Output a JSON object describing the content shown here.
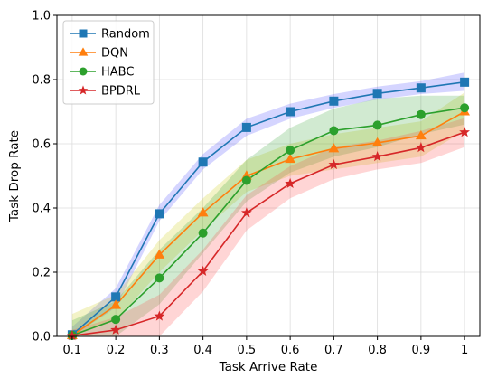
{
  "chart_data": {
    "type": "line",
    "title": "",
    "xlabel": "Task Arrive Rate",
    "ylabel": "Task Drop Rate",
    "xlim": [
      0.065,
      1.035
    ],
    "ylim": [
      0.0,
      1.0
    ],
    "x": [
      0.1,
      0.2,
      0.3,
      0.4,
      0.5,
      0.6,
      0.7,
      0.8,
      0.9,
      1.0
    ],
    "x_tick_labels": [
      "0.1",
      "0.2",
      "0.3",
      "0.4",
      "0.5",
      "0.6",
      "0.7",
      "0.8",
      "0.9",
      "1"
    ],
    "y_ticks": [
      0.0,
      0.2,
      0.4,
      0.6,
      0.8,
      1.0
    ],
    "y_tick_labels": [
      "0.0",
      "0.2",
      "0.4",
      "0.6",
      "0.8",
      "1.0"
    ],
    "grid": true,
    "legend_position": "top-left",
    "series": [
      {
        "name": "Random",
        "color": "#1f77b4",
        "band_color": "#4040ff",
        "marker": "square",
        "values": [
          0.005,
          0.123,
          0.382,
          0.543,
          0.651,
          0.7,
          0.733,
          0.757,
          0.774,
          0.792
        ],
        "lower": [
          0.0,
          0.09,
          0.36,
          0.52,
          0.625,
          0.678,
          0.712,
          0.738,
          0.755,
          0.765
        ],
        "upper": [
          0.03,
          0.15,
          0.41,
          0.568,
          0.678,
          0.725,
          0.755,
          0.778,
          0.795,
          0.822
        ]
      },
      {
        "name": "DQN",
        "color": "#ff7f0e",
        "band_color": "#c8c800",
        "marker": "triangle",
        "values": [
          0.003,
          0.097,
          0.254,
          0.385,
          0.5,
          0.552,
          0.585,
          0.603,
          0.625,
          0.7
        ],
        "lower": [
          0.0,
          0.05,
          0.2,
          0.33,
          0.45,
          0.5,
          0.52,
          0.54,
          0.56,
          0.64
        ],
        "upper": [
          0.07,
          0.13,
          0.3,
          0.43,
          0.55,
          0.6,
          0.63,
          0.65,
          0.67,
          0.76
        ]
      },
      {
        "name": "HABC",
        "color": "#2ca02c",
        "band_color": "#2ca02c",
        "marker": "circle",
        "values": [
          0.003,
          0.053,
          0.182,
          0.322,
          0.486,
          0.58,
          0.641,
          0.658,
          0.691,
          0.712
        ],
        "lower": [
          0.0,
          0.0,
          0.1,
          0.26,
          0.42,
          0.51,
          0.56,
          0.59,
          0.63,
          0.66
        ],
        "upper": [
          0.05,
          0.11,
          0.27,
          0.4,
          0.55,
          0.65,
          0.71,
          0.74,
          0.75,
          0.75
        ]
      },
      {
        "name": "BPDRL",
        "color": "#d62728",
        "band_color": "#ff4040",
        "marker": "star",
        "values": [
          0.002,
          0.02,
          0.063,
          0.203,
          0.385,
          0.476,
          0.535,
          0.56,
          0.588,
          0.636
        ],
        "lower": [
          0.0,
          0.0,
          0.0,
          0.14,
          0.33,
          0.43,
          0.49,
          0.52,
          0.54,
          0.59
        ],
        "upper": [
          0.02,
          0.06,
          0.13,
          0.27,
          0.44,
          0.53,
          0.59,
          0.61,
          0.64,
          0.68
        ]
      }
    ]
  }
}
